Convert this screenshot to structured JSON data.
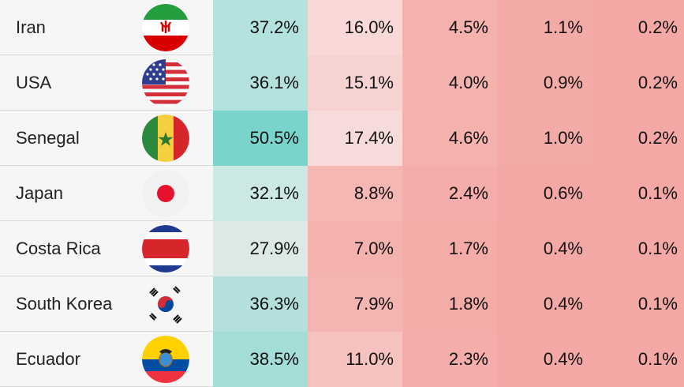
{
  "columns": [
    "team",
    "flag",
    "p1",
    "p2",
    "p3",
    "p4",
    "p5"
  ],
  "rows": [
    {
      "team": "Iran",
      "flag_icon": "iran-flag-icon",
      "values": [
        "37.2%",
        "16.0%",
        "4.5%",
        "1.1%",
        "0.2%"
      ],
      "colors": [
        "#b4e3df",
        "#f8d9d8",
        "#f4b1ae",
        "#f4aaa7",
        "#f4a8a5"
      ]
    },
    {
      "team": "USA",
      "flag_icon": "usa-flag-icon",
      "values": [
        "36.1%",
        "15.1%",
        "4.0%",
        "0.9%",
        "0.2%"
      ],
      "colors": [
        "#b3e1dd",
        "#f6d2d1",
        "#f5b3b0",
        "#f4aaa7",
        "#f4a8a5"
      ]
    },
    {
      "team": "Senegal",
      "flag_icon": "senegal-flag-icon",
      "values": [
        "50.5%",
        "17.4%",
        "4.6%",
        "1.0%",
        "0.2%"
      ],
      "colors": [
        "#79d4cb",
        "#f7dbda",
        "#f4b1ae",
        "#f4aaa7",
        "#f4a8a5"
      ]
    },
    {
      "team": "Japan",
      "flag_icon": "japan-flag-icon",
      "values": [
        "32.1%",
        "8.8%",
        "2.4%",
        "0.6%",
        "0.1%"
      ],
      "colors": [
        "#cbe8e4",
        "#f5b7b4",
        "#f4adaa",
        "#f4a8a5",
        "#f4a8a5"
      ]
    },
    {
      "team": "Costa Rica",
      "flag_icon": "costa-rica-flag-icon",
      "values": [
        "27.9%",
        "7.0%",
        "1.7%",
        "0.4%",
        "0.1%"
      ],
      "colors": [
        "#dce9e6",
        "#f4b2af",
        "#f4aca9",
        "#f4a8a5",
        "#f4a8a5"
      ]
    },
    {
      "team": "South Korea",
      "flag_icon": "south-korea-flag-icon",
      "values": [
        "36.3%",
        "7.9%",
        "1.8%",
        "0.4%",
        "0.1%"
      ],
      "colors": [
        "#b3e0dc",
        "#f4b4b1",
        "#f4aca9",
        "#f4a8a5",
        "#f4a8a5"
      ]
    },
    {
      "team": "Ecuador",
      "flag_icon": "ecuador-flag-icon",
      "values": [
        "38.5%",
        "11.0%",
        "2.3%",
        "0.4%",
        "0.1%"
      ],
      "colors": [
        "#a4ddd7",
        "#f5c2bf",
        "#f4adaa",
        "#f4a8a5",
        "#f4a8a5"
      ]
    }
  ]
}
